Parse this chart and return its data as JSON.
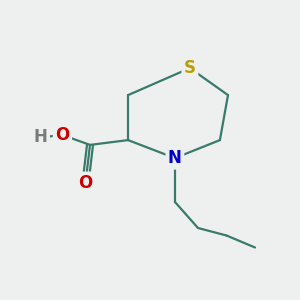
{
  "background_color": "#eef0f0",
  "bond_color": "#3a7a6a",
  "bond_width": 1.6,
  "atom_S": {
    "label": "S",
    "color": "#b8a000",
    "fontsize": 12,
    "fontweight": "bold"
  },
  "atom_N": {
    "label": "N",
    "color": "#0000cc",
    "fontsize": 12,
    "fontweight": "bold"
  },
  "atom_O1": {
    "label": "O",
    "color": "#cc0000",
    "fontsize": 12,
    "fontweight": "bold"
  },
  "atom_O2": {
    "label": "O",
    "color": "#cc0000",
    "fontsize": 12,
    "fontweight": "bold"
  },
  "atom_H": {
    "label": "H",
    "color": "#7a7a7a",
    "fontsize": 12,
    "fontweight": "bold"
  },
  "figsize": [
    3.0,
    3.0
  ],
  "dpi": 100
}
